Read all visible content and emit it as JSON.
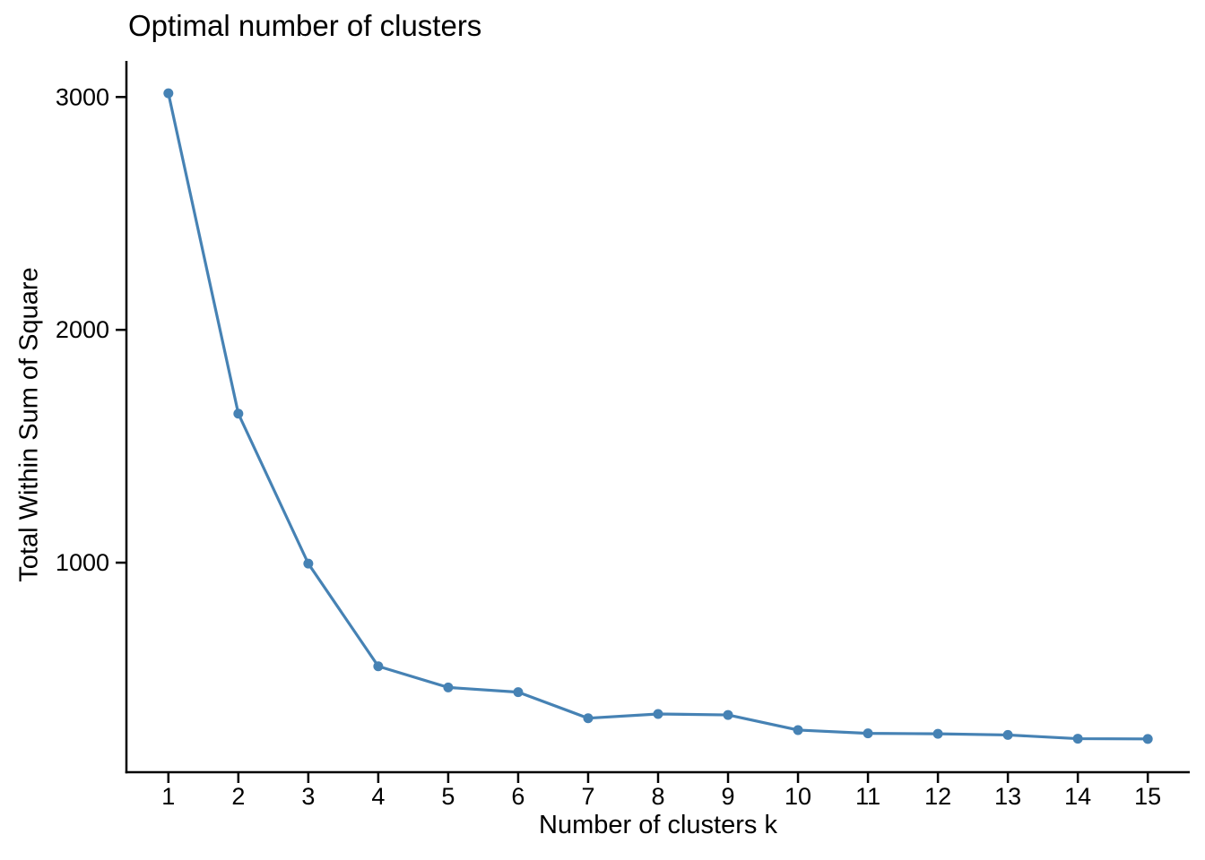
{
  "chart_data": {
    "type": "line",
    "title": "Optimal number of clusters",
    "xlabel": "Number of clusters k",
    "ylabel": "Total Within Sum of Square",
    "x": [
      1,
      2,
      3,
      4,
      5,
      6,
      7,
      8,
      9,
      10,
      11,
      12,
      13,
      14,
      15
    ],
    "values": [
      3016,
      1640,
      996,
      555,
      464,
      444,
      332,
      350,
      346,
      281,
      267,
      265,
      260,
      244,
      243
    ],
    "series_name": "Total Within Sum of Square",
    "xticks": [
      1,
      2,
      3,
      4,
      5,
      6,
      7,
      8,
      9,
      10,
      11,
      12,
      13,
      14,
      15
    ],
    "yticks": [
      1000,
      2000,
      3000
    ],
    "xlim": [
      0.4,
      15.6
    ],
    "ylim": [
      100,
      3155
    ],
    "grid": false,
    "legend_position": "none",
    "line_color": "#4682B4",
    "marker": "filled-circle",
    "axis_color": "#000000",
    "text_color": "#000000",
    "background_color": "#FFFFFF"
  }
}
